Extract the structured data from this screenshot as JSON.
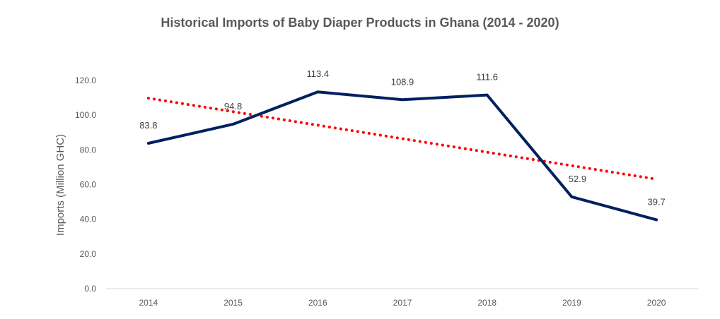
{
  "chart_data": {
    "type": "line",
    "title": "Historical Imports of Baby Diaper Products in Ghana (2014 - 2020)",
    "xlabel": "",
    "ylabel": "Imports (Million GHC)",
    "categories": [
      "2014",
      "2015",
      "2016",
      "2017",
      "2018",
      "2019",
      "2020"
    ],
    "series": [
      {
        "values": [
          83.8,
          94.8,
          113.4,
          108.9,
          111.6,
          52.9,
          39.7
        ],
        "data_labels": [
          "83.8",
          "94.8",
          "113.4",
          "108.9",
          "111.6",
          "52.9",
          "39.7"
        ],
        "color": "#002060",
        "style": "solid"
      },
      {
        "trendline": "linear",
        "color": "#ff0000",
        "style": "dotted"
      }
    ],
    "yticks": [
      "0.0",
      "20.0",
      "40.0",
      "60.0",
      "80.0",
      "100.0",
      "120.0"
    ],
    "ylim": [
      0,
      120
    ],
    "grid": false,
    "legend": "none"
  }
}
